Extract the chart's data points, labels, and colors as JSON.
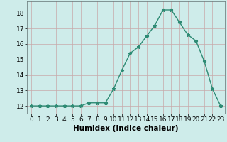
{
  "x": [
    0,
    1,
    2,
    3,
    4,
    5,
    6,
    7,
    8,
    9,
    10,
    11,
    12,
    13,
    14,
    15,
    16,
    17,
    18,
    19,
    20,
    21,
    22,
    23
  ],
  "y": [
    12,
    12,
    12,
    12,
    12,
    12,
    12,
    12.2,
    12.2,
    12.2,
    13.1,
    14.3,
    15.4,
    15.8,
    16.5,
    17.2,
    18.2,
    18.2,
    17.4,
    16.6,
    16.2,
    14.9,
    13.1,
    12.0
  ],
  "line_color": "#2e8b74",
  "marker": "*",
  "marker_size": 3.5,
  "background_color": "#ceecea",
  "grid_color": "#c8a8a8",
  "xlabel": "Humidex (Indice chaleur)",
  "xlim": [
    -0.5,
    23.5
  ],
  "ylim": [
    11.5,
    18.75
  ],
  "yticks": [
    12,
    13,
    14,
    15,
    16,
    17,
    18
  ],
  "xticks": [
    0,
    1,
    2,
    3,
    4,
    5,
    6,
    7,
    8,
    9,
    10,
    11,
    12,
    13,
    14,
    15,
    16,
    17,
    18,
    19,
    20,
    21,
    22,
    23
  ],
  "xlabel_fontsize": 7.5,
  "tick_fontsize": 6.5,
  "line_width": 1.0
}
